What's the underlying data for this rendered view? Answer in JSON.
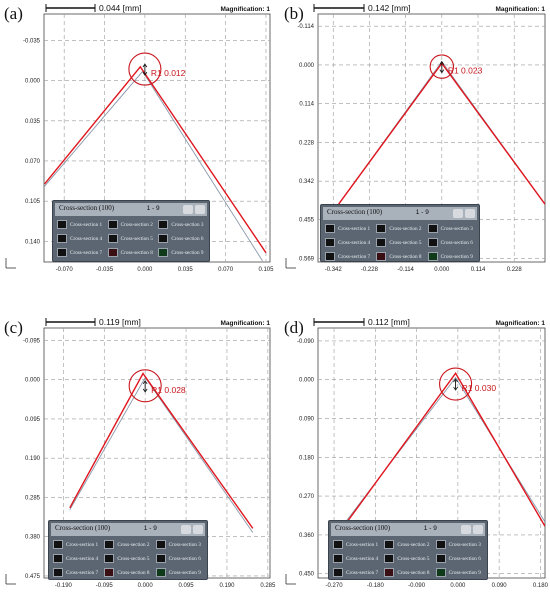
{
  "panels": [
    {
      "id": "a",
      "label": "(a)",
      "scale_label": "0.044 [mm]",
      "magnification": "Magnification: 1",
      "annotation": "R1 0.012",
      "legend": {
        "title": "Cross-section (100)",
        "page": "1 - 9"
      }
    },
    {
      "id": "b",
      "label": "(b)",
      "scale_label": "0.142 [mm]",
      "magnification": "Magnification: 1",
      "annotation": "R1 0.023",
      "legend": {
        "title": "Cross-section (100)",
        "page": "1 - 9"
      }
    },
    {
      "id": "c",
      "label": "(c)",
      "scale_label": "0.119 [mm]",
      "magnification": "Magnification: 1",
      "annotation": "R1 0.028",
      "legend": {
        "title": "Cross-section (100)",
        "page": "1 - 9"
      }
    },
    {
      "id": "d",
      "label": "(d)",
      "scale_label": "0.112 [mm]",
      "magnification": "Magnification: 1",
      "annotation": "R1 0.030",
      "legend": {
        "title": "Cross-section (100)",
        "page": "1 - 9"
      }
    }
  ],
  "legend_items": [
    "Cross-section 1",
    "Cross-section 2",
    "Cross-section 3",
    "Cross-section 4",
    "Cross-section 5",
    "Cross-section 6",
    "Cross-section 7",
    "Cross-section 8",
    "Cross-section 9"
  ],
  "legend_swatch_colors": [
    "#111111",
    "#111111",
    "#111111",
    "#111111",
    "#111111",
    "#111111",
    "#111111",
    "#3a0f14",
    "#0f3a1a"
  ],
  "colors": {
    "profile": "#e0161e",
    "reference": "#8a96a8",
    "grid": "#9a9a9a",
    "annotation": "#c8161d"
  },
  "chart_data": [
    {
      "type": "line",
      "title": "",
      "xlabel": "",
      "ylabel": "",
      "y_inverted": true,
      "xlim": [
        -0.0875,
        0.1085
      ],
      "ylim": [
        -0.058,
        0.158
      ],
      "x_ticks": [
        "-0.070",
        "-0.035",
        "0.000",
        "0.035",
        "0.070",
        "0.105"
      ],
      "x_tick_values": [
        -0.07,
        -0.035,
        0,
        0.035,
        0.07,
        0.105
      ],
      "y_ticks": [
        "-0.035",
        "0.000",
        "0.035",
        "0.070",
        "0.105",
        "0.140"
      ],
      "y_tick_values": [
        -0.035,
        0,
        0.035,
        0.07,
        0.105,
        0.14
      ],
      "grid": true,
      "series": [
        {
          "x": [
            -0.087,
            -0.002,
            0.102
          ],
          "y": [
            0.092,
            -0.008,
            0.157
          ]
        },
        {
          "x": [
            -0.087,
            -0.004,
            0.105
          ],
          "y": [
            0.09,
            -0.012,
            0.15
          ]
        }
      ],
      "annotations": [
        {
          "text": "R1 0.012",
          "x": 0.0,
          "y": -0.01,
          "radius": 0.012
        }
      ]
    },
    {
      "type": "line",
      "title": "",
      "xlabel": "",
      "ylabel": "",
      "y_inverted": true,
      "xlim": [
        -0.39,
        0.325
      ],
      "ylim": [
        -0.15,
        0.58
      ],
      "x_ticks": [
        "-0.342",
        "-0.228",
        "-0.114",
        "0.000",
        "0.114",
        "0.228"
      ],
      "x_tick_values": [
        -0.342,
        -0.228,
        -0.114,
        0,
        0.114,
        0.228
      ],
      "y_ticks": [
        "-0.114",
        "0.000",
        "0.114",
        "0.228",
        "0.342",
        "0.455",
        "0.569"
      ],
      "y_tick_values": [
        -0.114,
        0,
        0.114,
        0.228,
        0.342,
        0.455,
        0.569
      ],
      "grid": true,
      "series": [
        {
          "x": [
            -0.325,
            0.0,
            0.325
          ],
          "y": [
            0.41,
            -0.01,
            0.41
          ]
        },
        {
          "x": [
            -0.325,
            0.0,
            0.325
          ],
          "y": [
            0.41,
            -0.005,
            0.41
          ]
        }
      ],
      "annotations": [
        {
          "text": "R1 0.023",
          "x": 0.0,
          "y": 0.005,
          "radius": 0.023
        }
      ]
    },
    {
      "type": "line",
      "title": "",
      "xlabel": "",
      "ylabel": "",
      "y_inverted": true,
      "xlim": [
        -0.235,
        0.29
      ],
      "ylim": [
        -0.125,
        0.48
      ],
      "x_ticks": [
        "-0.190",
        "-0.095",
        "0.000",
        "0.095",
        "0.190",
        "0.285"
      ],
      "x_tick_values": [
        -0.19,
        -0.095,
        0,
        0.095,
        0.19,
        0.285
      ],
      "y_ticks": [
        "-0.095",
        "0.000",
        "0.095",
        "0.190",
        "0.285",
        "0.380",
        "0.475"
      ],
      "y_tick_values": [
        -0.095,
        0,
        0.095,
        0.19,
        0.285,
        0.38,
        0.475
      ],
      "grid": true,
      "series": [
        {
          "x": [
            -0.175,
            0.0,
            0.25
          ],
          "y": [
            0.315,
            -0.005,
            0.37
          ]
        },
        {
          "x": [
            -0.175,
            -0.005,
            0.25
          ],
          "y": [
            0.31,
            -0.015,
            0.36
          ]
        }
      ],
      "annotations": [
        {
          "text": "R1 0.028",
          "x": 0.0,
          "y": 0.015,
          "radius": 0.028
        }
      ]
    },
    {
      "type": "line",
      "title": "",
      "xlabel": "",
      "ylabel": "",
      "y_inverted": true,
      "xlim": [
        -0.305,
        0.19
      ],
      "ylim": [
        -0.12,
        0.46
      ],
      "x_ticks": [
        "-0.270",
        "-0.180",
        "-0.090",
        "0.000",
        "0.090",
        "0.180"
      ],
      "x_tick_values": [
        -0.27,
        -0.18,
        -0.09,
        0,
        0.09,
        0.18
      ],
      "y_ticks": [
        "-0.090",
        "0.000",
        "0.090",
        "0.180",
        "0.270",
        "0.360",
        "0.450"
      ],
      "y_tick_values": [
        -0.09,
        0,
        0.09,
        0.18,
        0.27,
        0.36,
        0.45
      ],
      "grid": true,
      "series": [
        {
          "x": [
            -0.245,
            -0.005,
            0.19
          ],
          "y": [
            0.33,
            -0.005,
            0.33
          ]
        },
        {
          "x": [
            -0.245,
            -0.005,
            0.19
          ],
          "y": [
            0.335,
            -0.015,
            0.34
          ]
        }
      ],
      "annotations": [
        {
          "text": "R1 0.030",
          "x": -0.005,
          "y": 0.01,
          "radius": 0.03
        }
      ]
    }
  ]
}
